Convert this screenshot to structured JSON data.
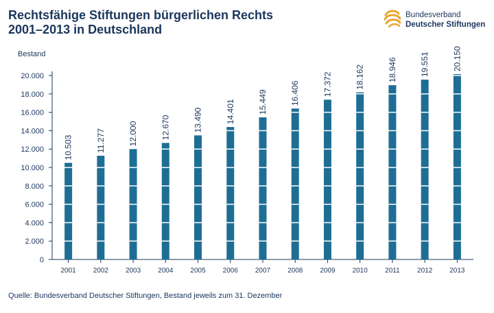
{
  "header": {
    "title_line1": "Rechtsfähige Stiftungen bürgerlichen Rechts",
    "title_line2": "2001–2013 in Deutschland"
  },
  "logo": {
    "line1": "Bundesverband",
    "line2": "Deutscher Stiftungen",
    "icon": "stiftungen-swirl-logo",
    "color": "#e8a52e"
  },
  "source_note": "Quelle: Bundesverband Deutscher Stiftungen, Bestand jeweils zum 31. Dezember",
  "colors": {
    "bar": "#1e6e94",
    "text": "#1b365d",
    "axis": "#1b365d"
  },
  "chart_data": {
    "type": "bar",
    "title": "Rechtsfähige Stiftungen bürgerlichen Rechts 2001–2013 in Deutschland",
    "xlabel": "",
    "ylabel": "Bestand",
    "ylim": [
      0,
      20000
    ],
    "yticks": [
      0,
      2000,
      4000,
      6000,
      8000,
      10000,
      12000,
      14000,
      16000,
      18000,
      20000
    ],
    "ytick_labels": [
      "0",
      "2.000",
      "4.000",
      "6.000",
      "8.000",
      "10.000",
      "12.000",
      "14.000",
      "16.000",
      "18.000",
      "20.000"
    ],
    "categories": [
      "2001",
      "2002",
      "2003",
      "2004",
      "2005",
      "2006",
      "2007",
      "2008",
      "2009",
      "2010",
      "2011",
      "2012",
      "2013"
    ],
    "values": [
      10503,
      11277,
      12000,
      12670,
      13490,
      14401,
      15449,
      16406,
      17372,
      18162,
      18946,
      19551,
      20150
    ],
    "value_labels": [
      "10.503",
      "11.277",
      "12.000",
      "12.670",
      "13.490",
      "14.401",
      "15.449",
      "16.406",
      "17.372",
      "18.162",
      "18.946",
      "19.551",
      "20.150"
    ],
    "grid": "white horizontal lines across bars",
    "legend": "none"
  }
}
